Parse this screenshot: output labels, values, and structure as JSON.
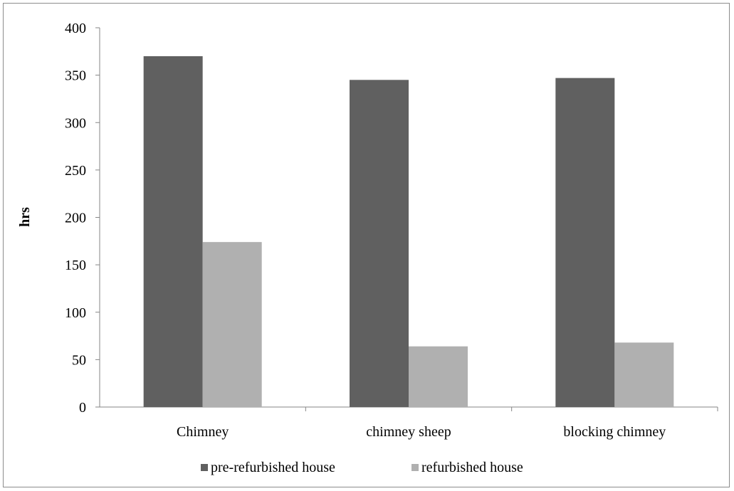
{
  "chart_data": {
    "type": "bar",
    "title": "",
    "xlabel": "",
    "ylabel": "hrs",
    "ylim": [
      0,
      400
    ],
    "yticks": [
      0,
      50,
      100,
      150,
      200,
      250,
      300,
      350,
      400
    ],
    "categories": [
      "Chimney",
      "chimney sheep",
      "blocking chimney"
    ],
    "series": [
      {
        "name": "pre-refurbished house",
        "color": "#606060",
        "values": [
          370,
          345,
          347
        ]
      },
      {
        "name": "refurbished house",
        "color": "#b0b0b0",
        "values": [
          174,
          64,
          68
        ]
      }
    ],
    "grid": false,
    "legend_position": "bottom"
  }
}
